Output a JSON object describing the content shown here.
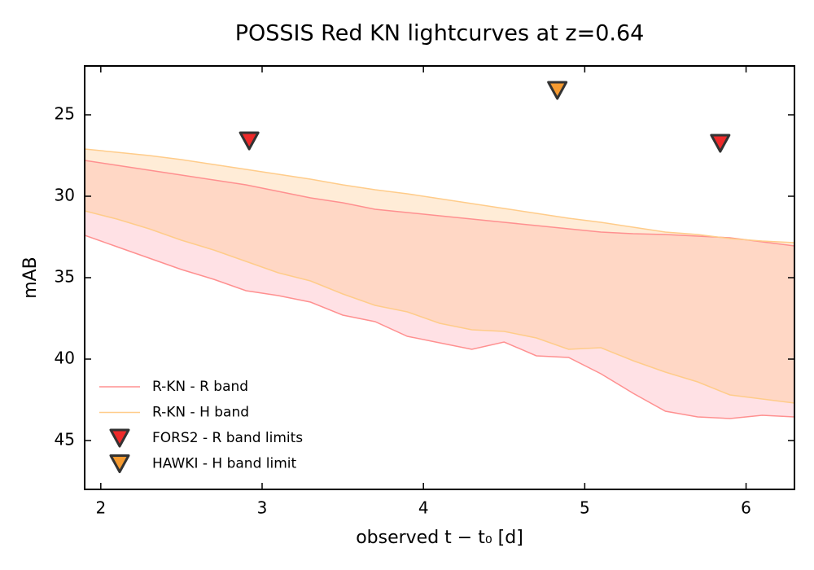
{
  "chart_data": {
    "type": "band",
    "title": "POSSIS Red KN lightcurves at z=0.64",
    "xlabel": "observed t − t₀ [d]",
    "ylabel": "mAB",
    "xlim": [
      1.9,
      6.3
    ],
    "ylim": [
      48,
      22
    ],
    "xticks": [
      2,
      3,
      4,
      5,
      6
    ],
    "yticks": [
      25,
      30,
      35,
      40,
      45
    ],
    "legend": "lower left",
    "x": [
      1.9,
      2.1,
      2.3,
      2.5,
      2.7,
      2.9,
      3.1,
      3.3,
      3.5,
      3.7,
      3.9,
      4.1,
      4.3,
      4.5,
      4.7,
      4.9,
      5.1,
      5.3,
      5.5,
      5.7,
      5.9,
      6.1,
      6.3
    ],
    "series": [
      {
        "name": "R-KN - R band",
        "color": "#ff9090",
        "fill": "#ff9aa8",
        "bright": [
          27.8,
          28.1,
          28.4,
          28.7,
          29.0,
          29.3,
          29.7,
          30.1,
          30.4,
          30.8,
          31.0,
          31.2,
          31.4,
          31.6,
          31.8,
          32.0,
          32.2,
          32.3,
          32.35,
          32.45,
          32.55,
          32.8,
          33.05
        ],
        "faint": [
          32.4,
          33.1,
          33.8,
          34.5,
          35.1,
          35.8,
          36.1,
          36.5,
          37.3,
          37.7,
          38.6,
          39.0,
          39.4,
          38.95,
          39.8,
          39.9,
          40.9,
          42.1,
          43.2,
          43.55,
          43.65,
          43.45,
          43.55
        ]
      },
      {
        "name": "R-KN - H band",
        "color": "#ffcc8a",
        "fill": "#ffc07a",
        "bright": [
          27.1,
          27.3,
          27.5,
          27.75,
          28.05,
          28.35,
          28.65,
          28.95,
          29.3,
          29.6,
          29.85,
          30.15,
          30.45,
          30.75,
          31.05,
          31.35,
          31.6,
          31.9,
          32.2,
          32.35,
          32.6,
          32.75,
          32.85
        ],
        "faint": [
          30.9,
          31.4,
          32.0,
          32.7,
          33.3,
          34.0,
          34.7,
          35.2,
          36.0,
          36.7,
          37.1,
          37.8,
          38.2,
          38.3,
          38.7,
          39.4,
          39.3,
          40.1,
          40.8,
          41.4,
          42.2,
          42.45,
          42.7
        ]
      }
    ],
    "limits": [
      {
        "name": "FORS2 - R band limits",
        "color": "#ee2a2a",
        "x": [
          2.92,
          5.84
        ],
        "values": [
          26.6,
          26.75
        ]
      },
      {
        "name": "HAWKI - H band limit",
        "color": "#f59a30",
        "x": [
          4.83
        ],
        "values": [
          23.5
        ]
      }
    ]
  }
}
